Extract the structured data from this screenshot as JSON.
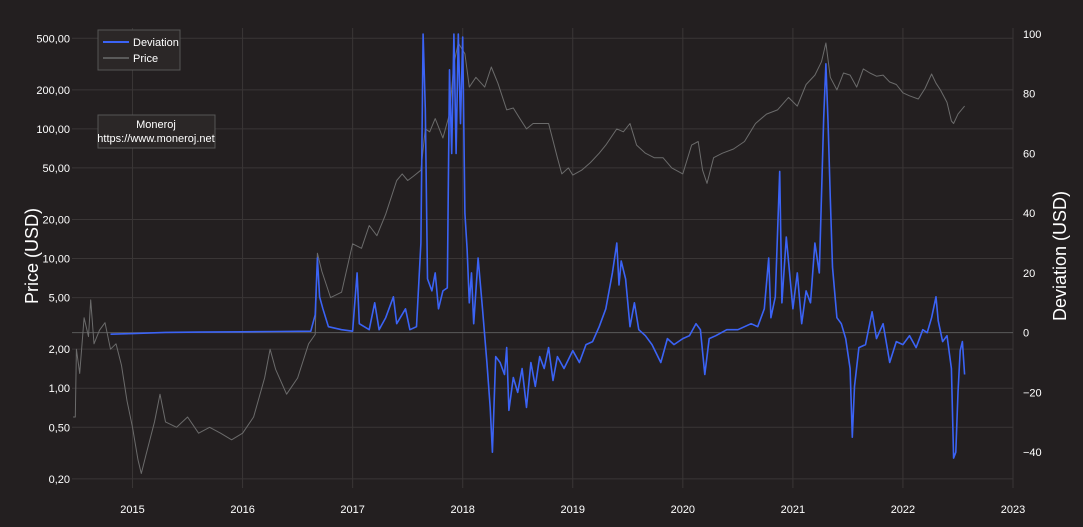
{
  "chart_data": {
    "type": "line",
    "xlabel": "",
    "y_left_label": "Price (USD)",
    "y_right_label": "Deviation (USD)",
    "y_left_scale": "log",
    "y_left_range": [
      0.17,
      600
    ],
    "y_right_range": [
      -52,
      102
    ],
    "x_range": [
      2014.45,
      2023.0
    ],
    "x_ticks": [
      "2015",
      "2016",
      "2017",
      "2018",
      "2019",
      "2020",
      "2021",
      "2022",
      "2023"
    ],
    "y_left_ticks": [
      {
        "v": 500,
        "label": "500,00"
      },
      {
        "v": 200,
        "label": "200,00"
      },
      {
        "v": 100,
        "label": "100,00"
      },
      {
        "v": 50,
        "label": "50,00"
      },
      {
        "v": 20,
        "label": "20,00"
      },
      {
        "v": 10,
        "label": "10,00"
      },
      {
        "v": 5,
        "label": "5,00"
      },
      {
        "v": 2,
        "label": "2,00"
      },
      {
        "v": 1,
        "label": "1,00"
      },
      {
        "v": 0.5,
        "label": "0,50"
      },
      {
        "v": 0.2,
        "label": "0,20"
      }
    ],
    "y_right_ticks": [
      {
        "v": 100,
        "label": "100"
      },
      {
        "v": 80,
        "label": "80"
      },
      {
        "v": 60,
        "label": "60"
      },
      {
        "v": 40,
        "label": "40"
      },
      {
        "v": 20,
        "label": "20"
      },
      {
        "v": 0,
        "label": "0"
      },
      {
        "v": -20,
        "label": "−20"
      },
      {
        "v": -40,
        "label": "−40"
      }
    ],
    "grid": true,
    "legend_position": "top-left",
    "annotation": {
      "title": "Moneroj",
      "url": "https://www.moneroj.net"
    },
    "series": [
      {
        "name": "Deviation",
        "axis": "right",
        "color": "#3b63f5",
        "points": [
          [
            2014.8,
            -0.5
          ],
          [
            2015.0,
            -0.3
          ],
          [
            2015.3,
            0.1
          ],
          [
            2015.6,
            0.2
          ],
          [
            2016.0,
            0.3
          ],
          [
            2016.3,
            0.4
          ],
          [
            2016.62,
            0.5
          ],
          [
            2016.66,
            6
          ],
          [
            2016.68,
            25
          ],
          [
            2016.7,
            12
          ],
          [
            2016.73,
            8
          ],
          [
            2016.78,
            2
          ],
          [
            2016.9,
            1
          ],
          [
            2017.0,
            0.5
          ],
          [
            2017.04,
            20
          ],
          [
            2017.06,
            3
          ],
          [
            2017.15,
            1
          ],
          [
            2017.2,
            10
          ],
          [
            2017.24,
            1
          ],
          [
            2017.3,
            5
          ],
          [
            2017.37,
            12
          ],
          [
            2017.4,
            3
          ],
          [
            2017.48,
            8
          ],
          [
            2017.52,
            1
          ],
          [
            2017.58,
            2
          ],
          [
            2017.62,
            30
          ],
          [
            2017.64,
            100
          ],
          [
            2017.66,
            75
          ],
          [
            2017.68,
            18
          ],
          [
            2017.72,
            14
          ],
          [
            2017.75,
            20
          ],
          [
            2017.78,
            8
          ],
          [
            2017.82,
            14
          ],
          [
            2017.86,
            15
          ],
          [
            2017.88,
            88
          ],
          [
            2017.9,
            60
          ],
          [
            2017.92,
            100
          ],
          [
            2017.94,
            60
          ],
          [
            2017.96,
            100
          ],
          [
            2017.98,
            70
          ],
          [
            2018.0,
            99
          ],
          [
            2018.02,
            40
          ],
          [
            2018.04,
            28
          ],
          [
            2018.06,
            10
          ],
          [
            2018.08,
            20
          ],
          [
            2018.1,
            3
          ],
          [
            2018.14,
            25
          ],
          [
            2018.18,
            8
          ],
          [
            2018.22,
            -10
          ],
          [
            2018.25,
            -25
          ],
          [
            2018.27,
            -40
          ],
          [
            2018.3,
            -8
          ],
          [
            2018.34,
            -10
          ],
          [
            2018.38,
            -14
          ],
          [
            2018.4,
            -5
          ],
          [
            2018.42,
            -26
          ],
          [
            2018.46,
            -15
          ],
          [
            2018.5,
            -20
          ],
          [
            2018.54,
            -12
          ],
          [
            2018.58,
            -25
          ],
          [
            2018.62,
            -10
          ],
          [
            2018.66,
            -18
          ],
          [
            2018.7,
            -8
          ],
          [
            2018.74,
            -12
          ],
          [
            2018.78,
            -5
          ],
          [
            2018.82,
            -16
          ],
          [
            2018.86,
            -8
          ],
          [
            2018.92,
            -12
          ],
          [
            2019.0,
            -6
          ],
          [
            2019.06,
            -10
          ],
          [
            2019.12,
            -4
          ],
          [
            2019.18,
            -3
          ],
          [
            2019.24,
            2
          ],
          [
            2019.3,
            8
          ],
          [
            2019.36,
            20
          ],
          [
            2019.4,
            30
          ],
          [
            2019.42,
            16
          ],
          [
            2019.44,
            24
          ],
          [
            2019.48,
            18
          ],
          [
            2019.52,
            2
          ],
          [
            2019.56,
            10
          ],
          [
            2019.6,
            1
          ],
          [
            2019.66,
            -1
          ],
          [
            2019.72,
            -4
          ],
          [
            2019.8,
            -10
          ],
          [
            2019.86,
            -2
          ],
          [
            2019.92,
            -4
          ],
          [
            2020.0,
            -2
          ],
          [
            2020.06,
            -1
          ],
          [
            2020.12,
            3
          ],
          [
            2020.16,
            1
          ],
          [
            2020.2,
            -14
          ],
          [
            2020.24,
            -2
          ],
          [
            2020.3,
            -1
          ],
          [
            2020.4,
            1
          ],
          [
            2020.5,
            1
          ],
          [
            2020.56,
            2
          ],
          [
            2020.62,
            3
          ],
          [
            2020.68,
            2
          ],
          [
            2020.74,
            8
          ],
          [
            2020.78,
            25
          ],
          [
            2020.8,
            5
          ],
          [
            2020.84,
            12
          ],
          [
            2020.88,
            54
          ],
          [
            2020.9,
            10
          ],
          [
            2020.94,
            32
          ],
          [
            2021.0,
            8
          ],
          [
            2021.04,
            20
          ],
          [
            2021.08,
            3
          ],
          [
            2021.12,
            14
          ],
          [
            2021.16,
            10
          ],
          [
            2021.2,
            30
          ],
          [
            2021.24,
            20
          ],
          [
            2021.28,
            72
          ],
          [
            2021.3,
            90
          ],
          [
            2021.32,
            70
          ],
          [
            2021.34,
            45
          ],
          [
            2021.36,
            22
          ],
          [
            2021.4,
            5
          ],
          [
            2021.44,
            3
          ],
          [
            2021.48,
            -2
          ],
          [
            2021.52,
            -12
          ],
          [
            2021.54,
            -35
          ],
          [
            2021.56,
            -18
          ],
          [
            2021.6,
            -5
          ],
          [
            2021.66,
            -4
          ],
          [
            2021.72,
            7
          ],
          [
            2021.76,
            -2
          ],
          [
            2021.82,
            3
          ],
          [
            2021.88,
            -10
          ],
          [
            2021.94,
            -3
          ],
          [
            2022.0,
            -4
          ],
          [
            2022.06,
            -1
          ],
          [
            2022.12,
            -5
          ],
          [
            2022.18,
            1
          ],
          [
            2022.22,
            0
          ],
          [
            2022.26,
            5
          ],
          [
            2022.3,
            12
          ],
          [
            2022.32,
            4
          ],
          [
            2022.36,
            -3
          ],
          [
            2022.4,
            -1
          ],
          [
            2022.44,
            -12
          ],
          [
            2022.46,
            -42
          ],
          [
            2022.48,
            -40
          ],
          [
            2022.5,
            -20
          ],
          [
            2022.52,
            -6
          ],
          [
            2022.54,
            -3
          ],
          [
            2022.56,
            -14
          ]
        ]
      },
      {
        "name": "Price",
        "axis": "left",
        "color": "#6b6b6b",
        "points": [
          [
            2014.46,
            0.6
          ],
          [
            2014.48,
            0.6
          ],
          [
            2014.49,
            2.0
          ],
          [
            2014.52,
            1.3
          ],
          [
            2014.56,
            3.5
          ],
          [
            2014.6,
            2.5
          ],
          [
            2014.62,
            4.8
          ],
          [
            2014.65,
            2.2
          ],
          [
            2014.7,
            2.8
          ],
          [
            2014.75,
            3.2
          ],
          [
            2014.8,
            2.0
          ],
          [
            2014.85,
            2.2
          ],
          [
            2014.9,
            1.5
          ],
          [
            2014.95,
            0.8
          ],
          [
            2015.0,
            0.5
          ],
          [
            2015.05,
            0.28
          ],
          [
            2015.08,
            0.22
          ],
          [
            2015.12,
            0.3
          ],
          [
            2015.2,
            0.55
          ],
          [
            2015.25,
            0.9
          ],
          [
            2015.3,
            0.55
          ],
          [
            2015.4,
            0.5
          ],
          [
            2015.5,
            0.6
          ],
          [
            2015.6,
            0.45
          ],
          [
            2015.7,
            0.5
          ],
          [
            2015.8,
            0.45
          ],
          [
            2015.9,
            0.4
          ],
          [
            2016.0,
            0.45
          ],
          [
            2016.1,
            0.6
          ],
          [
            2016.2,
            1.2
          ],
          [
            2016.25,
            2.0
          ],
          [
            2016.3,
            1.4
          ],
          [
            2016.4,
            0.9
          ],
          [
            2016.5,
            1.2
          ],
          [
            2016.6,
            2.2
          ],
          [
            2016.66,
            2.6
          ],
          [
            2016.68,
            11
          ],
          [
            2016.72,
            8
          ],
          [
            2016.8,
            5
          ],
          [
            2016.9,
            5.5
          ],
          [
            2017.0,
            13
          ],
          [
            2017.08,
            12
          ],
          [
            2017.15,
            18
          ],
          [
            2017.22,
            15
          ],
          [
            2017.3,
            22
          ],
          [
            2017.4,
            40
          ],
          [
            2017.45,
            45
          ],
          [
            2017.5,
            40
          ],
          [
            2017.55,
            43
          ],
          [
            2017.62,
            48
          ],
          [
            2017.66,
            100
          ],
          [
            2017.7,
            95
          ],
          [
            2017.75,
            120
          ],
          [
            2017.82,
            85
          ],
          [
            2017.88,
            130
          ],
          [
            2017.92,
            320
          ],
          [
            2017.96,
            460
          ],
          [
            2018.02,
            380
          ],
          [
            2018.06,
            210
          ],
          [
            2018.12,
            250
          ],
          [
            2018.2,
            210
          ],
          [
            2018.26,
            300
          ],
          [
            2018.32,
            225
          ],
          [
            2018.4,
            140
          ],
          [
            2018.46,
            145
          ],
          [
            2018.52,
            120
          ],
          [
            2018.58,
            100
          ],
          [
            2018.64,
            110
          ],
          [
            2018.7,
            110
          ],
          [
            2018.78,
            110
          ],
          [
            2018.86,
            60
          ],
          [
            2018.9,
            45
          ],
          [
            2018.96,
            50
          ],
          [
            2019.0,
            44
          ],
          [
            2019.08,
            48
          ],
          [
            2019.16,
            55
          ],
          [
            2019.24,
            65
          ],
          [
            2019.3,
            75
          ],
          [
            2019.4,
            100
          ],
          [
            2019.46,
            95
          ],
          [
            2019.52,
            110
          ],
          [
            2019.58,
            75
          ],
          [
            2019.66,
            65
          ],
          [
            2019.74,
            60
          ],
          [
            2019.82,
            60
          ],
          [
            2019.9,
            50
          ],
          [
            2020.0,
            45
          ],
          [
            2020.08,
            75
          ],
          [
            2020.14,
            80
          ],
          [
            2020.18,
            48
          ],
          [
            2020.22,
            38
          ],
          [
            2020.28,
            60
          ],
          [
            2020.36,
            65
          ],
          [
            2020.46,
            70
          ],
          [
            2020.56,
            80
          ],
          [
            2020.66,
            110
          ],
          [
            2020.76,
            130
          ],
          [
            2020.86,
            140
          ],
          [
            2020.96,
            175
          ],
          [
            2021.04,
            150
          ],
          [
            2021.12,
            220
          ],
          [
            2021.2,
            260
          ],
          [
            2021.26,
            330
          ],
          [
            2021.3,
            460
          ],
          [
            2021.34,
            250
          ],
          [
            2021.4,
            200
          ],
          [
            2021.46,
            270
          ],
          [
            2021.52,
            260
          ],
          [
            2021.58,
            210
          ],
          [
            2021.64,
            290
          ],
          [
            2021.7,
            270
          ],
          [
            2021.76,
            255
          ],
          [
            2021.82,
            260
          ],
          [
            2021.88,
            230
          ],
          [
            2021.94,
            220
          ],
          [
            2022.0,
            190
          ],
          [
            2022.06,
            180
          ],
          [
            2022.14,
            170
          ],
          [
            2022.2,
            205
          ],
          [
            2022.26,
            265
          ],
          [
            2022.3,
            225
          ],
          [
            2022.34,
            200
          ],
          [
            2022.4,
            160
          ],
          [
            2022.44,
            115
          ],
          [
            2022.46,
            110
          ],
          [
            2022.5,
            130
          ],
          [
            2022.56,
            150
          ]
        ]
      }
    ]
  }
}
